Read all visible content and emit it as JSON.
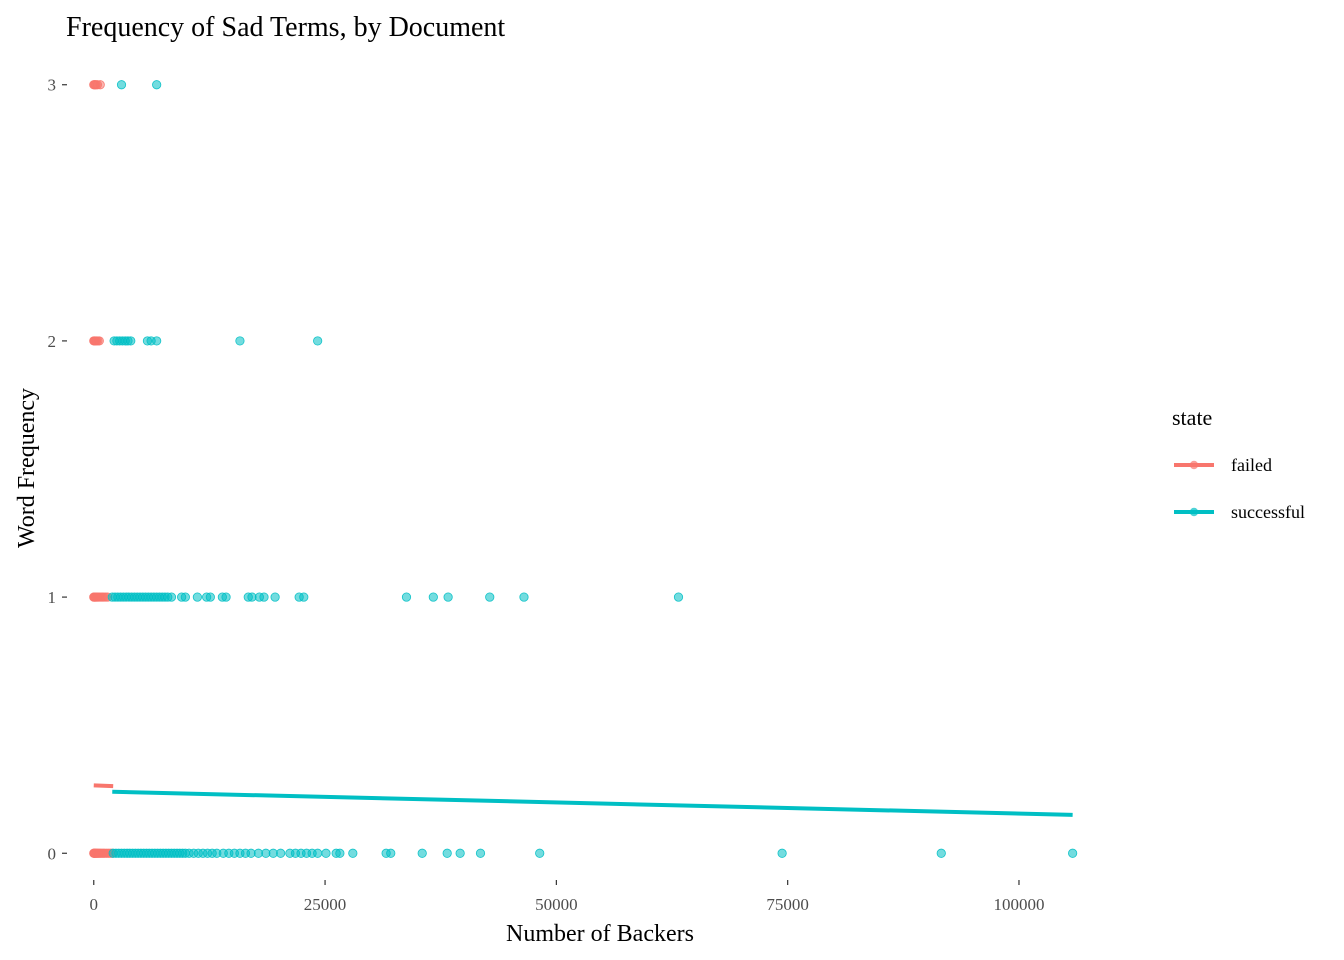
{
  "chart_data": {
    "type": "scatter",
    "title": "Frequency of Sad Terms, by Document",
    "xlabel": "Number of Backers",
    "ylabel": "Word Frequency",
    "xlim": [
      -3000,
      112000
    ],
    "ylim": [
      -0.12,
      3.12
    ],
    "x_ticks": [
      0,
      25000,
      50000,
      75000,
      100000
    ],
    "x_tick_labels": [
      "0",
      "25000",
      "50000",
      "75000",
      "100000"
    ],
    "y_ticks": [
      0,
      1,
      2,
      3
    ],
    "y_tick_labels": [
      "0",
      "1",
      "2",
      "3"
    ],
    "grid": false,
    "legend": {
      "title": "state",
      "position": "right"
    },
    "colors": {
      "failed": "#F8766D",
      "successful": "#00BFC4"
    },
    "series": [
      {
        "name": "failed",
        "color": "#F8766D",
        "points": [
          [
            0,
            3
          ],
          [
            80,
            3
          ],
          [
            150,
            3
          ],
          [
            250,
            3
          ],
          [
            400,
            3
          ],
          [
            700,
            3
          ],
          [
            0,
            2
          ],
          [
            60,
            2
          ],
          [
            120,
            2
          ],
          [
            200,
            2
          ],
          [
            300,
            2
          ],
          [
            450,
            2
          ],
          [
            600,
            2
          ],
          [
            0,
            1
          ],
          [
            40,
            1
          ],
          [
            90,
            1
          ],
          [
            150,
            1
          ],
          [
            220,
            1
          ],
          [
            300,
            1
          ],
          [
            400,
            1
          ],
          [
            500,
            1
          ],
          [
            650,
            1
          ],
          [
            800,
            1
          ],
          [
            950,
            1
          ],
          [
            1100,
            1
          ],
          [
            1300,
            1
          ],
          [
            1500,
            1
          ],
          [
            0,
            0
          ],
          [
            30,
            0
          ],
          [
            70,
            0
          ],
          [
            120,
            0
          ],
          [
            180,
            0
          ],
          [
            250,
            0
          ],
          [
            330,
            0
          ],
          [
            420,
            0
          ],
          [
            520,
            0
          ],
          [
            640,
            0
          ],
          [
            760,
            0
          ],
          [
            900,
            0
          ],
          [
            1050,
            0
          ],
          [
            1200,
            0
          ],
          [
            1400,
            0
          ],
          [
            1600,
            0
          ],
          [
            1800,
            0
          ],
          [
            2000,
            0
          ]
        ],
        "trend": [
          [
            0,
            0.265
          ],
          [
            2100,
            0.262
          ]
        ]
      },
      {
        "name": "successful",
        "color": "#00BFC4",
        "points": [
          [
            3000,
            3
          ],
          [
            6800,
            3
          ],
          [
            2200,
            2
          ],
          [
            2500,
            2
          ],
          [
            2800,
            2
          ],
          [
            3100,
            2
          ],
          [
            3400,
            2
          ],
          [
            3700,
            2
          ],
          [
            4000,
            2
          ],
          [
            5800,
            2
          ],
          [
            6200,
            2
          ],
          [
            6800,
            2
          ],
          [
            15800,
            2
          ],
          [
            24200,
            2
          ],
          [
            2000,
            1
          ],
          [
            2300,
            1
          ],
          [
            2600,
            1
          ],
          [
            2900,
            1
          ],
          [
            3200,
            1
          ],
          [
            3500,
            1
          ],
          [
            3800,
            1
          ],
          [
            4100,
            1
          ],
          [
            4400,
            1
          ],
          [
            4700,
            1
          ],
          [
            5000,
            1
          ],
          [
            5300,
            1
          ],
          [
            5600,
            1
          ],
          [
            5900,
            1
          ],
          [
            6200,
            1
          ],
          [
            6500,
            1
          ],
          [
            6800,
            1
          ],
          [
            7100,
            1
          ],
          [
            7400,
            1
          ],
          [
            7700,
            1
          ],
          [
            8000,
            1
          ],
          [
            8400,
            1
          ],
          [
            9500,
            1
          ],
          [
            9900,
            1
          ],
          [
            11200,
            1
          ],
          [
            12200,
            1
          ],
          [
            12600,
            1
          ],
          [
            13900,
            1
          ],
          [
            14300,
            1
          ],
          [
            16700,
            1
          ],
          [
            17100,
            1
          ],
          [
            17900,
            1
          ],
          [
            18400,
            1
          ],
          [
            19600,
            1
          ],
          [
            22200,
            1
          ],
          [
            22700,
            1
          ],
          [
            33800,
            1
          ],
          [
            36700,
            1
          ],
          [
            38300,
            1
          ],
          [
            42800,
            1
          ],
          [
            46500,
            1
          ],
          [
            63200,
            1
          ],
          [
            2100,
            0
          ],
          [
            2400,
            0
          ],
          [
            2700,
            0
          ],
          [
            3000,
            0
          ],
          [
            3300,
            0
          ],
          [
            3600,
            0
          ],
          [
            3900,
            0
          ],
          [
            4200,
            0
          ],
          [
            4500,
            0
          ],
          [
            4800,
            0
          ],
          [
            5100,
            0
          ],
          [
            5400,
            0
          ],
          [
            5700,
            0
          ],
          [
            6000,
            0
          ],
          [
            6300,
            0
          ],
          [
            6600,
            0
          ],
          [
            6900,
            0
          ],
          [
            7200,
            0
          ],
          [
            7500,
            0
          ],
          [
            7800,
            0
          ],
          [
            8100,
            0
          ],
          [
            8400,
            0
          ],
          [
            8700,
            0
          ],
          [
            9000,
            0
          ],
          [
            9300,
            0
          ],
          [
            9600,
            0
          ],
          [
            9900,
            0
          ],
          [
            10300,
            0
          ],
          [
            10800,
            0
          ],
          [
            11300,
            0
          ],
          [
            11800,
            0
          ],
          [
            12300,
            0
          ],
          [
            12800,
            0
          ],
          [
            13300,
            0
          ],
          [
            14000,
            0
          ],
          [
            14600,
            0
          ],
          [
            15200,
            0
          ],
          [
            15800,
            0
          ],
          [
            16400,
            0
          ],
          [
            17000,
            0
          ],
          [
            17800,
            0
          ],
          [
            18600,
            0
          ],
          [
            19400,
            0
          ],
          [
            20200,
            0
          ],
          [
            21200,
            0
          ],
          [
            21800,
            0
          ],
          [
            22400,
            0
          ],
          [
            23000,
            0
          ],
          [
            23600,
            0
          ],
          [
            24200,
            0
          ],
          [
            25100,
            0
          ],
          [
            26200,
            0
          ],
          [
            26600,
            0
          ],
          [
            28000,
            0
          ],
          [
            31600,
            0
          ],
          [
            32100,
            0
          ],
          [
            35500,
            0
          ],
          [
            38200,
            0
          ],
          [
            39600,
            0
          ],
          [
            41800,
            0
          ],
          [
            48200,
            0
          ],
          [
            74400,
            0
          ],
          [
            91600,
            0
          ],
          [
            105800,
            0
          ]
        ],
        "trend": [
          [
            2000,
            0.24
          ],
          [
            105800,
            0.15
          ]
        ]
      }
    ]
  }
}
